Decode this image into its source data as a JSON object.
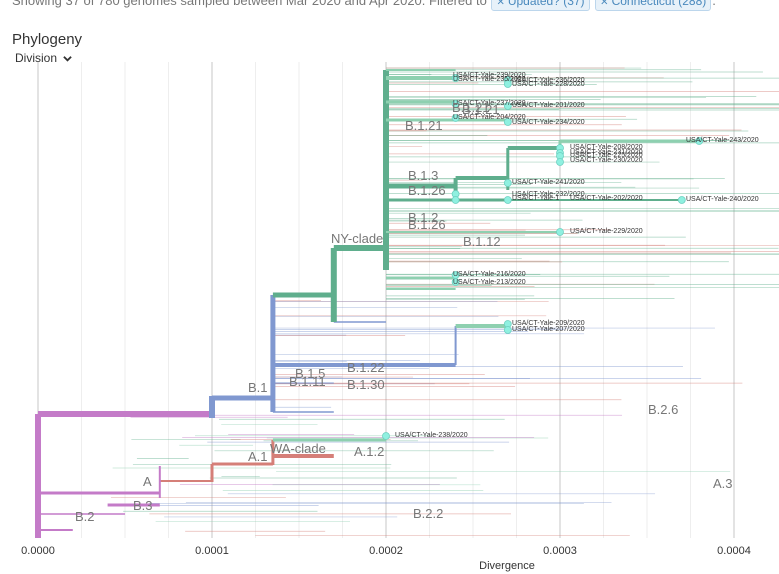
{
  "header": {
    "status_prefix": "Showing 37 of 780 genomes sampled between Mar 2020 and Apr 2020. Filtered to",
    "filter_chips": [
      "Updated? (37)",
      "Connecticut (288)"
    ],
    "status_suffix": "."
  },
  "panel": {
    "title": "Phylogeny",
    "division_label": "Division"
  },
  "colors": {
    "purple": "#c47bc8",
    "blue": "#8098d0",
    "green": "#5fae8d",
    "lightgreen": "#8ed0b0",
    "red": "#d57f78",
    "tip": "#8ff0e0",
    "grid": "#dddddd"
  },
  "chart_data": {
    "type": "phylogeny",
    "xlabel": "Divergence",
    "xlim": [
      0,
      0.00042
    ],
    "x_ticks": [
      "0.0000",
      "0.0001",
      "0.0002",
      "0.0003",
      "0.0004"
    ],
    "x_tick_values": [
      0,
      0.0001,
      0.0002,
      0.0003,
      0.0004
    ],
    "clade_labels": [
      {
        "name": "NY-clade",
        "x": 0.00017
      },
      {
        "name": "B.1.21",
        "x": 0.00022
      },
      {
        "name": "B.1.21",
        "x": 0.00024
      },
      {
        "name": "B.1.3",
        "x": 0.000205
      },
      {
        "name": "B.1.26",
        "x": 0.000205
      },
      {
        "name": "B.1.2",
        "x": 0.000205
      },
      {
        "name": "B.1.26",
        "x": 0.000205
      },
      {
        "name": "B.1.12",
        "x": 0.00024
      },
      {
        "name": "B.1",
        "x": 0.00012
      },
      {
        "name": "B.1.5",
        "x": 0.000147
      },
      {
        "name": "B.1.11",
        "x": 0.000143
      },
      {
        "name": "B.1.22",
        "x": 0.000175
      },
      {
        "name": "B.1.30",
        "x": 0.000175
      },
      {
        "name": "B.2.6",
        "x": 0.00035
      },
      {
        "name": "A.1",
        "x": 0.000122
      },
      {
        "name": "WA-clade",
        "x": 0.000133
      },
      {
        "name": "A.1.2",
        "x": 0.00018
      },
      {
        "name": "A",
        "x": 6e-05
      },
      {
        "name": "B.3",
        "x": 5e-05
      },
      {
        "name": "B.2",
        "x": 2e-05
      },
      {
        "name": "B.2.2",
        "x": 0.00022
      },
      {
        "name": "A.3",
        "x": 0.000395
      }
    ],
    "tips": [
      {
        "name": "USA/CT-Yale-239/2020",
        "x": 0.00024
      },
      {
        "name": "USA/CT-Yale-235/2020",
        "x": 0.00024
      },
      {
        "name": "USA/CT-Yale-236/2020",
        "x": 0.00027
      },
      {
        "name": "USA/CT-Yale-228/2020",
        "x": 0.00027
      },
      {
        "name": "USA/CT-Yale-237/2020",
        "x": 0.00024
      },
      {
        "name": "USA/CT-Yale-201/2020",
        "x": 0.00027
      },
      {
        "name": "USA/CT-Yale-204/2020",
        "x": 0.00024
      },
      {
        "name": "USA/CT-Yale-234/2020",
        "x": 0.00027
      },
      {
        "name": "USA/CT-Yale-243/2020",
        "x": 0.00038
      },
      {
        "name": "USA/CT-Yale-208/2020",
        "x": 0.0003
      },
      {
        "name": "USA/CT-Yale-231/2020",
        "x": 0.0003
      },
      {
        "name": "USA/CT-Yale-225/2020",
        "x": 0.0003
      },
      {
        "name": "USA/CT-Yale-230/2020",
        "x": 0.0003
      },
      {
        "name": "USA/CT-Yale-241/2020",
        "x": 0.00027
      },
      {
        "name": "USA/CT-Yale-232/2020",
        "x": 0.00024
      },
      {
        "name": "USA/CT-Yale-1",
        "x": 0.00024
      },
      {
        "name": "USA/CT-Yale-202/2020",
        "x": 0.00027
      },
      {
        "name": "USA/CT-Yale-240/2020",
        "x": 0.00037
      },
      {
        "name": "USA/CT-Yale-229/2020",
        "x": 0.0003
      },
      {
        "name": "USA/CT-Yale-216/2020",
        "x": 0.00024
      },
      {
        "name": "USA/CT-Yale-213/2020",
        "x": 0.00024
      },
      {
        "name": "USA/CT-Yale-209/2020",
        "x": 0.00027
      },
      {
        "name": "USA/CT-Yale-207/2020",
        "x": 0.00027
      },
      {
        "name": "USA/CT-Yale-238/2020",
        "x": 0.0002
      }
    ]
  }
}
